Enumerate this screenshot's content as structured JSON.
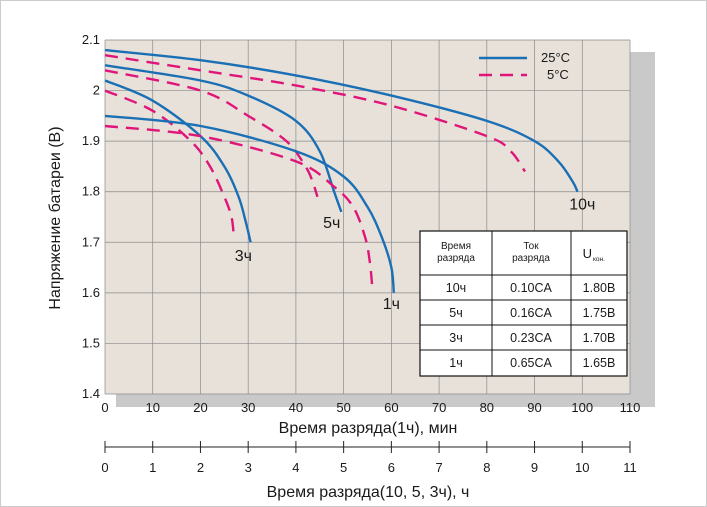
{
  "chart_data": {
    "type": "line",
    "ylabel": "Напряжение батареи (В)",
    "xlabel": "Время разряда(1ч), мин",
    "xlabel2": "Время разряда(10, 5, 3ч), ч",
    "xlim": [
      0,
      110
    ],
    "x_ticks": [
      "0",
      "10",
      "20",
      "30",
      "40",
      "50",
      "60",
      "70",
      "80",
      "90",
      "100",
      "110"
    ],
    "xlim2": [
      0,
      11
    ],
    "x2_ticks": [
      "0",
      "1",
      "2",
      "3",
      "4",
      "5",
      "6",
      "7",
      "8",
      "9",
      "10",
      "11"
    ],
    "ylim": [
      1.4,
      2.1
    ],
    "y_ticks": [
      "1.4",
      "1.5",
      "1.6",
      "1.7",
      "1.8",
      "1.9",
      "2",
      "2.1"
    ],
    "grid": true,
    "legend_position": "top-right",
    "legend": [
      {
        "label": "25°C",
        "color": "#1a6fb5",
        "style": "solid"
      },
      {
        "label": "5°C",
        "color": "#e0157a",
        "style": "dashed"
      }
    ],
    "series": [
      {
        "rate": "10ч",
        "temp": "25°C",
        "x": [
          0,
          20,
          40,
          60,
          80,
          90,
          95,
          98,
          99
        ],
        "y": [
          2.08,
          2.06,
          2.03,
          1.99,
          1.94,
          1.9,
          1.86,
          1.82,
          1.8
        ]
      },
      {
        "rate": "10ч",
        "temp": "5°C",
        "x": [
          0,
          20,
          40,
          60,
          80,
          85,
          88
        ],
        "y": [
          2.07,
          2.04,
          2.01,
          1.97,
          1.91,
          1.88,
          1.84
        ]
      },
      {
        "rate": "5ч",
        "temp": "25°C",
        "x": [
          0,
          20,
          30,
          40,
          45,
          48,
          49.5
        ],
        "y": [
          2.05,
          2.02,
          1.99,
          1.94,
          1.88,
          1.8,
          1.76
        ]
      },
      {
        "rate": "5ч",
        "temp": "5°C",
        "x": [
          0,
          20,
          30,
          38,
          42,
          43.5,
          44.5
        ],
        "y": [
          2.04,
          2.0,
          1.95,
          1.9,
          1.85,
          1.82,
          1.79
        ]
      },
      {
        "rate": "3ч",
        "temp": "25°C",
        "x": [
          0,
          10,
          20,
          25,
          28,
          29.5,
          30.5
        ],
        "y": [
          2.02,
          1.98,
          1.91,
          1.85,
          1.79,
          1.74,
          1.7
        ]
      },
      {
        "rate": "3ч",
        "temp": "5°C",
        "x": [
          0,
          10,
          18,
          22,
          25,
          26.5,
          27
        ],
        "y": [
          2.0,
          1.96,
          1.9,
          1.85,
          1.79,
          1.75,
          1.71
        ]
      },
      {
        "rate": "1ч",
        "temp": "25°C",
        "x": [
          0,
          20,
          40,
          50,
          55,
          58,
          60,
          60.5
        ],
        "y": [
          1.95,
          1.93,
          1.88,
          1.83,
          1.77,
          1.71,
          1.65,
          1.6
        ]
      },
      {
        "rate": "1ч",
        "temp": "5°C",
        "x": [
          0,
          20,
          40,
          48,
          52,
          54.5,
          55.5,
          56
        ],
        "y": [
          1.93,
          1.91,
          1.86,
          1.81,
          1.77,
          1.71,
          1.66,
          1.61
        ]
      }
    ],
    "curve_labels": [
      {
        "text": "10ч",
        "x": 100,
        "y": 1.765
      },
      {
        "text": "5ч",
        "x": 47.5,
        "y": 1.728
      },
      {
        "text": "3ч",
        "x": 29,
        "y": 1.663
      },
      {
        "text": "1ч",
        "x": 60,
        "y": 1.568
      }
    ],
    "table": {
      "headers": [
        [
          "Время",
          "разряда"
        ],
        [
          "Ток",
          "разряда"
        ],
        [
          "U",
          "кон."
        ]
      ],
      "rows": [
        [
          "10ч",
          "0.10CA",
          "1.80В"
        ],
        [
          "5ч",
          "0.16CA",
          "1.75В"
        ],
        [
          "3ч",
          "0.23CA",
          "1.70В"
        ],
        [
          "1ч",
          "0.65CA",
          "1.65В"
        ]
      ]
    }
  }
}
